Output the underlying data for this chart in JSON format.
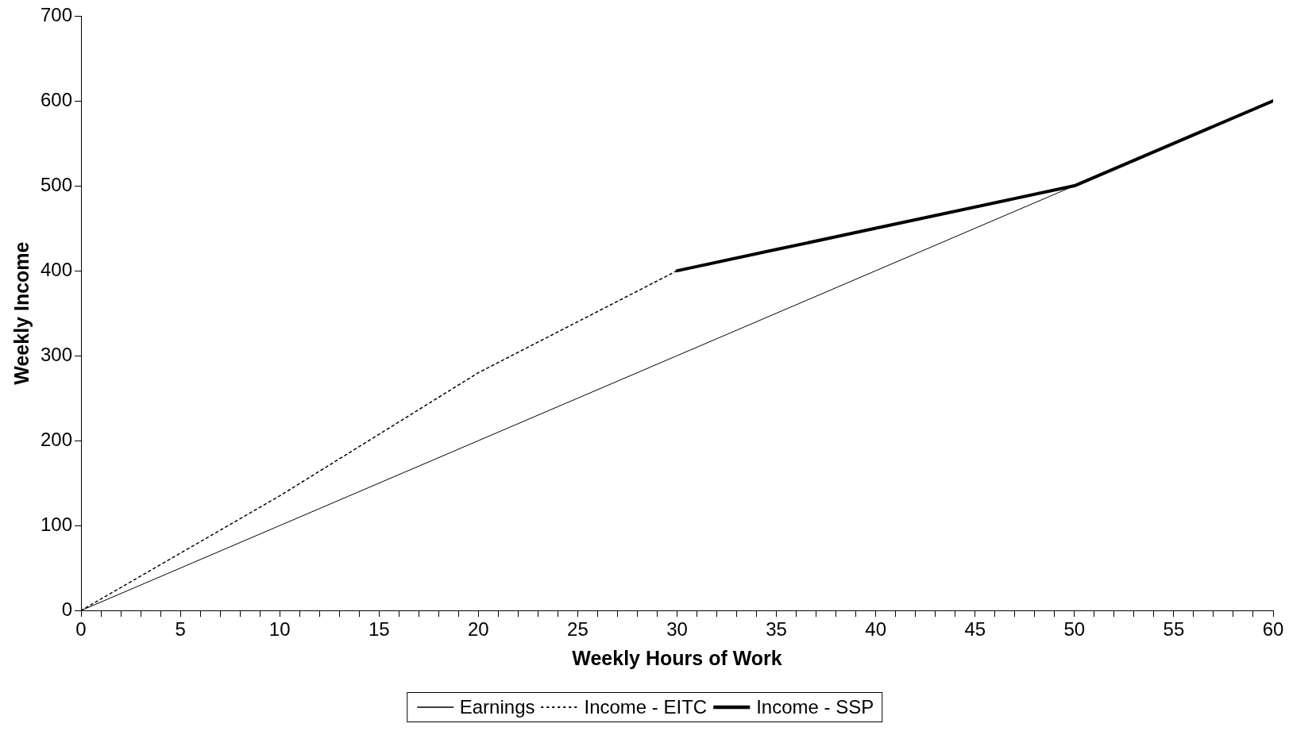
{
  "chart_data": {
    "type": "line",
    "xlabel": "Weekly Hours of Work",
    "ylabel": "Weekly Income",
    "xlim": [
      0,
      60
    ],
    "ylim": [
      0,
      700
    ],
    "xticks": [
      0,
      {
        "value": 1,
        "label": null
      },
      {
        "value": 2,
        "label": null
      },
      {
        "value": 3,
        "label": null
      },
      {
        "value": 4,
        "label": null
      },
      5,
      {
        "value": 6,
        "label": null
      },
      {
        "value": 7,
        "label": null
      },
      {
        "value": 8,
        "label": null
      },
      {
        "value": 9,
        "label": null
      },
      10,
      {
        "value": 11,
        "label": null
      },
      {
        "value": 12,
        "label": null
      },
      {
        "value": 13,
        "label": null
      },
      {
        "value": 14,
        "label": null
      },
      15,
      {
        "value": 16,
        "label": null
      },
      {
        "value": 17,
        "label": null
      },
      {
        "value": 18,
        "label": null
      },
      {
        "value": 19,
        "label": null
      },
      20,
      {
        "value": 21,
        "label": null
      },
      {
        "value": 22,
        "label": null
      },
      {
        "value": 23,
        "label": null
      },
      {
        "value": 24,
        "label": null
      },
      25,
      {
        "value": 26,
        "label": null
      },
      {
        "value": 27,
        "label": null
      },
      {
        "value": 28,
        "label": null
      },
      {
        "value": 29,
        "label": null
      },
      30,
      {
        "value": 31,
        "label": null
      },
      {
        "value": 32,
        "label": null
      },
      {
        "value": 33,
        "label": null
      },
      {
        "value": 34,
        "label": null
      },
      35,
      {
        "value": 36,
        "label": null
      },
      {
        "value": 37,
        "label": null
      },
      {
        "value": 38,
        "label": null
      },
      {
        "value": 39,
        "label": null
      },
      40,
      {
        "value": 41,
        "label": null
      },
      {
        "value": 42,
        "label": null
      },
      {
        "value": 43,
        "label": null
      },
      {
        "value": 44,
        "label": null
      },
      45,
      {
        "value": 46,
        "label": null
      },
      {
        "value": 47,
        "label": null
      },
      {
        "value": 48,
        "label": null
      },
      {
        "value": 49,
        "label": null
      },
      50,
      {
        "value": 51,
        "label": null
      },
      {
        "value": 52,
        "label": null
      },
      {
        "value": 53,
        "label": null
      },
      {
        "value": 54,
        "label": null
      },
      55,
      {
        "value": 56,
        "label": null
      },
      {
        "value": 57,
        "label": null
      },
      {
        "value": 58,
        "label": null
      },
      {
        "value": 59,
        "label": null
      },
      60
    ],
    "yticks": [
      0,
      100,
      200,
      300,
      400,
      500,
      600,
      700
    ],
    "grid": false,
    "legend": "bottom",
    "marker": "none",
    "series": [
      {
        "name": "Earnings",
        "color": "#000000",
        "line_style": "solid",
        "x": [
          0,
          10,
          20,
          30,
          40,
          50,
          60
        ],
        "values": [
          0,
          100,
          200,
          300,
          400,
          500,
          600
        ]
      },
      {
        "name": "Income - EITC",
        "color": "#000000",
        "line_style": "dotted",
        "x": [
          0,
          10,
          20,
          30
        ],
        "values": [
          0,
          135,
          280,
          400
        ]
      },
      {
        "name": "Income - SSP",
        "color": "#000000",
        "line_style": "solid",
        "x": [
          30,
          35,
          40,
          50,
          60
        ],
        "values": [
          400,
          425,
          450,
          500,
          600
        ]
      }
    ]
  }
}
